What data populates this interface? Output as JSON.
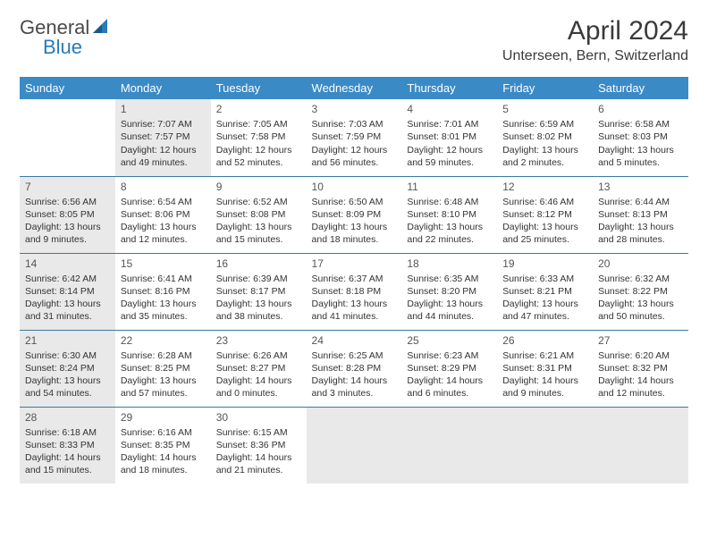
{
  "logo": {
    "general": "General",
    "blue": "Blue"
  },
  "title": "April 2024",
  "location": "Unterseen, Bern, Switzerland",
  "day_headers": [
    "Sunday",
    "Monday",
    "Tuesday",
    "Wednesday",
    "Thursday",
    "Friday",
    "Saturday"
  ],
  "colors": {
    "header_bg": "#3a8ac6",
    "header_text": "#ffffff",
    "row_border": "#3a7aa8",
    "shaded_cell": "#e9e9e9",
    "logo_blue": "#2a7ab8",
    "logo_gray": "#4a4a4a"
  },
  "weeks": [
    [
      {
        "day": "",
        "empty": true
      },
      {
        "day": "1",
        "shaded": true,
        "sunrise": "Sunrise: 7:07 AM",
        "sunset": "Sunset: 7:57 PM",
        "daylight": "Daylight: 12 hours and 49 minutes."
      },
      {
        "day": "2",
        "sunrise": "Sunrise: 7:05 AM",
        "sunset": "Sunset: 7:58 PM",
        "daylight": "Daylight: 12 hours and 52 minutes."
      },
      {
        "day": "3",
        "sunrise": "Sunrise: 7:03 AM",
        "sunset": "Sunset: 7:59 PM",
        "daylight": "Daylight: 12 hours and 56 minutes."
      },
      {
        "day": "4",
        "sunrise": "Sunrise: 7:01 AM",
        "sunset": "Sunset: 8:01 PM",
        "daylight": "Daylight: 12 hours and 59 minutes."
      },
      {
        "day": "5",
        "sunrise": "Sunrise: 6:59 AM",
        "sunset": "Sunset: 8:02 PM",
        "daylight": "Daylight: 13 hours and 2 minutes."
      },
      {
        "day": "6",
        "sunrise": "Sunrise: 6:58 AM",
        "sunset": "Sunset: 8:03 PM",
        "daylight": "Daylight: 13 hours and 5 minutes."
      }
    ],
    [
      {
        "day": "7",
        "shaded": true,
        "sunrise": "Sunrise: 6:56 AM",
        "sunset": "Sunset: 8:05 PM",
        "daylight": "Daylight: 13 hours and 9 minutes."
      },
      {
        "day": "8",
        "sunrise": "Sunrise: 6:54 AM",
        "sunset": "Sunset: 8:06 PM",
        "daylight": "Daylight: 13 hours and 12 minutes."
      },
      {
        "day": "9",
        "sunrise": "Sunrise: 6:52 AM",
        "sunset": "Sunset: 8:08 PM",
        "daylight": "Daylight: 13 hours and 15 minutes."
      },
      {
        "day": "10",
        "sunrise": "Sunrise: 6:50 AM",
        "sunset": "Sunset: 8:09 PM",
        "daylight": "Daylight: 13 hours and 18 minutes."
      },
      {
        "day": "11",
        "sunrise": "Sunrise: 6:48 AM",
        "sunset": "Sunset: 8:10 PM",
        "daylight": "Daylight: 13 hours and 22 minutes."
      },
      {
        "day": "12",
        "sunrise": "Sunrise: 6:46 AM",
        "sunset": "Sunset: 8:12 PM",
        "daylight": "Daylight: 13 hours and 25 minutes."
      },
      {
        "day": "13",
        "sunrise": "Sunrise: 6:44 AM",
        "sunset": "Sunset: 8:13 PM",
        "daylight": "Daylight: 13 hours and 28 minutes."
      }
    ],
    [
      {
        "day": "14",
        "shaded": true,
        "sunrise": "Sunrise: 6:42 AM",
        "sunset": "Sunset: 8:14 PM",
        "daylight": "Daylight: 13 hours and 31 minutes."
      },
      {
        "day": "15",
        "sunrise": "Sunrise: 6:41 AM",
        "sunset": "Sunset: 8:16 PM",
        "daylight": "Daylight: 13 hours and 35 minutes."
      },
      {
        "day": "16",
        "sunrise": "Sunrise: 6:39 AM",
        "sunset": "Sunset: 8:17 PM",
        "daylight": "Daylight: 13 hours and 38 minutes."
      },
      {
        "day": "17",
        "sunrise": "Sunrise: 6:37 AM",
        "sunset": "Sunset: 8:18 PM",
        "daylight": "Daylight: 13 hours and 41 minutes."
      },
      {
        "day": "18",
        "sunrise": "Sunrise: 6:35 AM",
        "sunset": "Sunset: 8:20 PM",
        "daylight": "Daylight: 13 hours and 44 minutes."
      },
      {
        "day": "19",
        "sunrise": "Sunrise: 6:33 AM",
        "sunset": "Sunset: 8:21 PM",
        "daylight": "Daylight: 13 hours and 47 minutes."
      },
      {
        "day": "20",
        "sunrise": "Sunrise: 6:32 AM",
        "sunset": "Sunset: 8:22 PM",
        "daylight": "Daylight: 13 hours and 50 minutes."
      }
    ],
    [
      {
        "day": "21",
        "shaded": true,
        "sunrise": "Sunrise: 6:30 AM",
        "sunset": "Sunset: 8:24 PM",
        "daylight": "Daylight: 13 hours and 54 minutes."
      },
      {
        "day": "22",
        "sunrise": "Sunrise: 6:28 AM",
        "sunset": "Sunset: 8:25 PM",
        "daylight": "Daylight: 13 hours and 57 minutes."
      },
      {
        "day": "23",
        "sunrise": "Sunrise: 6:26 AM",
        "sunset": "Sunset: 8:27 PM",
        "daylight": "Daylight: 14 hours and 0 minutes."
      },
      {
        "day": "24",
        "sunrise": "Sunrise: 6:25 AM",
        "sunset": "Sunset: 8:28 PM",
        "daylight": "Daylight: 14 hours and 3 minutes."
      },
      {
        "day": "25",
        "sunrise": "Sunrise: 6:23 AM",
        "sunset": "Sunset: 8:29 PM",
        "daylight": "Daylight: 14 hours and 6 minutes."
      },
      {
        "day": "26",
        "sunrise": "Sunrise: 6:21 AM",
        "sunset": "Sunset: 8:31 PM",
        "daylight": "Daylight: 14 hours and 9 minutes."
      },
      {
        "day": "27",
        "sunrise": "Sunrise: 6:20 AM",
        "sunset": "Sunset: 8:32 PM",
        "daylight": "Daylight: 14 hours and 12 minutes."
      }
    ],
    [
      {
        "day": "28",
        "shaded": true,
        "sunrise": "Sunrise: 6:18 AM",
        "sunset": "Sunset: 8:33 PM",
        "daylight": "Daylight: 14 hours and 15 minutes."
      },
      {
        "day": "29",
        "sunrise": "Sunrise: 6:16 AM",
        "sunset": "Sunset: 8:35 PM",
        "daylight": "Daylight: 14 hours and 18 minutes."
      },
      {
        "day": "30",
        "sunrise": "Sunrise: 6:15 AM",
        "sunset": "Sunset: 8:36 PM",
        "daylight": "Daylight: 14 hours and 21 minutes."
      },
      {
        "day": "",
        "shaded": true,
        "empty": true
      },
      {
        "day": "",
        "shaded": true,
        "empty": true
      },
      {
        "day": "",
        "shaded": true,
        "empty": true
      },
      {
        "day": "",
        "shaded": true,
        "empty": true
      }
    ]
  ]
}
